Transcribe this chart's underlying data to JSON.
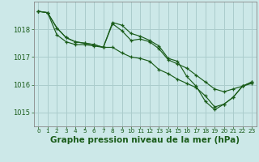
{
  "background_color": "#cce8e8",
  "grid_color": "#aacccc",
  "line_color": "#1a5c1a",
  "xlabel": "Graphe pression niveau de la mer (hPa)",
  "xlabel_fontsize": 7.5,
  "ytick_labels": [
    "1015",
    "1016",
    "1017",
    "1018"
  ],
  "yticks": [
    1015,
    1016,
    1017,
    1018
  ],
  "xticks": [
    0,
    1,
    2,
    3,
    4,
    5,
    6,
    7,
    8,
    9,
    10,
    11,
    12,
    13,
    14,
    15,
    16,
    17,
    18,
    19,
    20,
    21,
    22,
    23
  ],
  "ylim": [
    1014.5,
    1019.0
  ],
  "xlim": [
    -0.5,
    23.5
  ],
  "series": [
    [
      1018.65,
      1018.6,
      1018.05,
      1017.7,
      1017.55,
      1017.5,
      1017.45,
      1017.35,
      1018.2,
      1017.95,
      1017.6,
      1017.65,
      1017.55,
      1017.3,
      1016.9,
      1016.75,
      1016.6,
      1016.35,
      1016.1,
      1015.85,
      1015.75,
      1015.85,
      1015.95,
      1016.05
    ],
    [
      1018.65,
      1018.6,
      1018.05,
      1017.7,
      1017.55,
      1017.5,
      1017.45,
      1017.35,
      1018.25,
      1018.15,
      1017.85,
      1017.75,
      1017.6,
      1017.4,
      1016.95,
      1016.85,
      1016.3,
      1015.95,
      1015.4,
      1015.1,
      1015.3,
      1015.55,
      1015.95,
      1016.1
    ],
    [
      1018.65,
      1018.6,
      1017.8,
      1017.55,
      1017.45,
      1017.45,
      1017.4,
      1017.35,
      1017.35,
      1017.15,
      1017.0,
      1016.95,
      1016.85,
      1016.55,
      1016.4,
      1016.2,
      1016.05,
      1015.9,
      1015.6,
      1015.2,
      1015.3,
      1015.55,
      1015.95,
      1016.1
    ]
  ]
}
